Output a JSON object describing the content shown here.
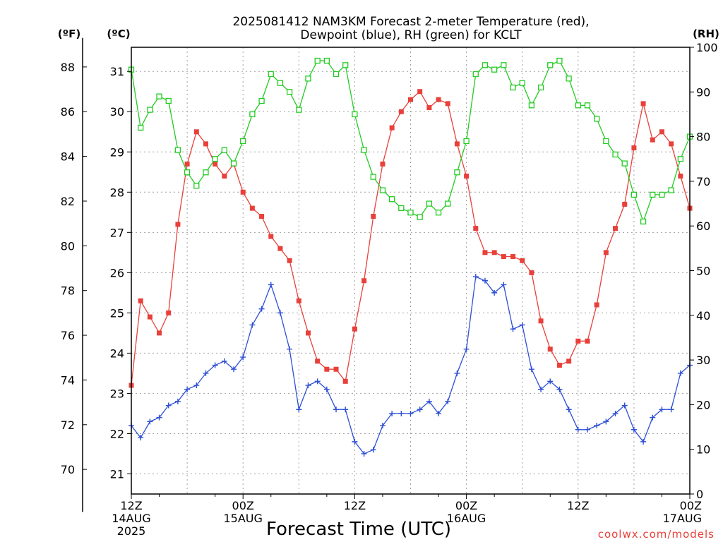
{
  "title_line1": "2025081412 NAM3KM Forecast 2-meter Temperature (red),",
  "title_line2": "Dewpoint (blue), RH (green) for KCLT",
  "units": {
    "fahrenheit": "(ºF)",
    "celsius": "(ºC)",
    "rh": "(RH)"
  },
  "xlabel": "Forecast Time (UTC)",
  "watermark": "coolwx.com/models",
  "colors": {
    "temperature": "#e8403a",
    "dewpoint": "#2e4fd6",
    "rh": "#22cc22",
    "grid": "#a0a0a0",
    "watermark": "#e8403a"
  },
  "chart_data": {
    "type": "line",
    "x_unit": "forecast hour from 2025-08-14 12Z",
    "x": [
      0,
      1,
      2,
      3,
      4,
      5,
      6,
      7,
      8,
      9,
      10,
      11,
      12,
      13,
      14,
      15,
      16,
      17,
      18,
      19,
      20,
      21,
      22,
      23,
      24,
      25,
      26,
      27,
      28,
      29,
      30,
      31,
      32,
      33,
      34,
      35,
      36,
      37,
      38,
      39,
      40,
      41,
      42,
      43,
      44,
      45,
      46,
      47,
      48,
      49,
      50,
      51,
      52,
      53,
      54,
      55,
      56,
      57,
      58,
      59,
      60
    ],
    "xlim": [
      0,
      60
    ],
    "x_ticks": [
      {
        "value": 0,
        "lines": [
          "12Z",
          "14AUG",
          "2025"
        ]
      },
      {
        "value": 12,
        "lines": [
          "00Z",
          "15AUG"
        ]
      },
      {
        "value": 24,
        "lines": [
          "12Z"
        ]
      },
      {
        "value": 36,
        "lines": [
          "00Z",
          "16AUG"
        ]
      },
      {
        "value": 48,
        "lines": [
          "12Z"
        ]
      },
      {
        "value": 60,
        "lines": [
          "00Z",
          "17AUG"
        ]
      }
    ],
    "y_celsius": {
      "lim": [
        20.5,
        31.6
      ],
      "ticks": [
        21,
        22,
        23,
        24,
        25,
        26,
        27,
        28,
        29,
        30,
        31
      ]
    },
    "y_fahrenheit": {
      "ticks": [
        70,
        72,
        74,
        76,
        78,
        80,
        82,
        84,
        86,
        88
      ]
    },
    "y_rh": {
      "lim": [
        0,
        100
      ],
      "ticks": [
        0,
        10,
        20,
        30,
        40,
        50,
        60,
        70,
        80,
        90,
        100
      ]
    },
    "grid": true,
    "series": [
      {
        "key": "temperature",
        "marker": "filled-square",
        "axis": "celsius",
        "values": [
          23.2,
          25.3,
          24.9,
          24.5,
          25.0,
          27.2,
          28.7,
          29.5,
          29.2,
          28.7,
          28.4,
          28.7,
          28.0,
          27.6,
          27.4,
          26.9,
          26.6,
          26.3,
          25.3,
          24.5,
          23.8,
          23.6,
          23.6,
          23.3,
          24.6,
          25.8,
          27.4,
          28.7,
          29.6,
          30.0,
          30.3,
          30.5,
          30.1,
          30.3,
          30.2,
          29.2,
          28.4,
          27.1,
          26.5,
          26.5,
          26.4,
          26.4,
          26.3,
          26.0,
          24.8,
          24.1,
          23.7,
          23.8,
          24.3,
          24.3,
          25.2,
          26.5,
          27.1,
          27.7,
          29.1,
          30.2,
          29.3,
          29.5,
          29.2,
          28.4,
          27.6
        ]
      },
      {
        "key": "dewpoint",
        "marker": "plus",
        "axis": "celsius",
        "values": [
          22.2,
          21.9,
          22.3,
          22.4,
          22.7,
          22.8,
          23.1,
          23.2,
          23.5,
          23.7,
          23.8,
          23.6,
          23.9,
          24.7,
          25.1,
          25.7,
          25.0,
          24.1,
          22.6,
          23.2,
          23.3,
          23.1,
          22.6,
          22.6,
          21.8,
          21.5,
          21.6,
          22.2,
          22.5,
          22.5,
          22.5,
          22.6,
          22.8,
          22.5,
          22.8,
          23.5,
          24.1,
          25.9,
          25.8,
          25.5,
          25.7,
          24.6,
          24.7,
          23.6,
          23.1,
          23.3,
          23.1,
          22.6,
          22.1,
          22.1,
          22.2,
          22.3,
          22.5,
          22.7,
          22.1,
          21.8,
          22.4,
          22.6,
          22.6,
          23.5,
          23.7
        ]
      },
      {
        "key": "rh",
        "marker": "hollow-square",
        "axis": "rh",
        "values": [
          95,
          82,
          86,
          89,
          88,
          77,
          72,
          69,
          72,
          75,
          77,
          74,
          79,
          85,
          88,
          94,
          92,
          90,
          86,
          93,
          97,
          97,
          94,
          96,
          85,
          77,
          71,
          68,
          66,
          64,
          63,
          62,
          65,
          63,
          65,
          72,
          79,
          94,
          96,
          95,
          96,
          91,
          92,
          87,
          91,
          96,
          97,
          93,
          87,
          87,
          84,
          79,
          76,
          74,
          67,
          61,
          67,
          67,
          68,
          75,
          80
        ]
      }
    ]
  }
}
